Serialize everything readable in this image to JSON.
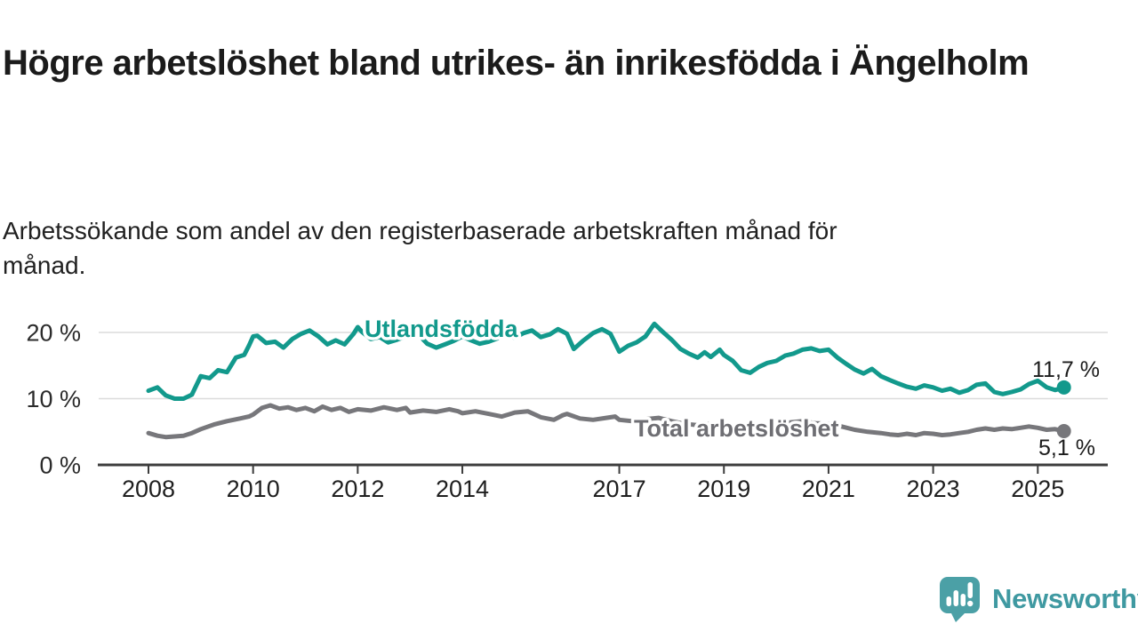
{
  "page": {
    "title": "Högre arbetslöshet bland utrikes- än inrikesfödda i Ängelholm",
    "subtitle": "Arbetssökande som andel av den registerbaserade arbetskraften månad för månad."
  },
  "branding": {
    "logo_text": "Newsworthy",
    "logo_icon": "newsworthy-speech-bubble-bar-chart-icon",
    "logo_text_color": "#3f99a1",
    "logo_icon_color": "#4ba0a6"
  },
  "chart_data": {
    "type": "line",
    "unit": "%",
    "grid": "horizontal",
    "x_axis": {
      "ticks": [
        2008,
        2010,
        2012,
        2014,
        2017,
        2019,
        2021,
        2023,
        2025
      ],
      "range": [
        2007.9,
        2026.3
      ]
    },
    "y_axis": {
      "ticks": [
        {
          "value": 0,
          "label": "0 %"
        },
        {
          "value": 10,
          "label": "10 %"
        },
        {
          "value": 20,
          "label": "20 %"
        }
      ],
      "range": [
        0,
        24.5
      ]
    },
    "series": [
      {
        "name": "Utlandsfödda",
        "color": "#12998c",
        "label_color": "#12998c",
        "end_value": 11.7,
        "end_label": "11,7 %",
        "points": [
          [
            2008.0,
            11.2
          ],
          [
            2008.17,
            11.7
          ],
          [
            2008.33,
            10.5
          ],
          [
            2008.5,
            10.0
          ],
          [
            2008.67,
            10.0
          ],
          [
            2008.83,
            10.6
          ],
          [
            2009.0,
            13.4
          ],
          [
            2009.17,
            13.1
          ],
          [
            2009.33,
            14.3
          ],
          [
            2009.5,
            14.0
          ],
          [
            2009.67,
            16.2
          ],
          [
            2009.83,
            16.6
          ],
          [
            2009.92,
            18.0
          ],
          [
            2010.0,
            19.4
          ],
          [
            2010.08,
            19.5
          ],
          [
            2010.25,
            18.4
          ],
          [
            2010.42,
            18.6
          ],
          [
            2010.58,
            17.7
          ],
          [
            2010.75,
            19.0
          ],
          [
            2010.92,
            19.8
          ],
          [
            2011.08,
            20.3
          ],
          [
            2011.25,
            19.4
          ],
          [
            2011.42,
            18.2
          ],
          [
            2011.58,
            18.8
          ],
          [
            2011.75,
            18.2
          ],
          [
            2011.92,
            19.8
          ],
          [
            2012.0,
            20.8
          ],
          [
            2012.08,
            20.1
          ],
          [
            2012.25,
            19.0
          ],
          [
            2012.42,
            19.3
          ],
          [
            2012.58,
            18.5
          ],
          [
            2012.75,
            18.9
          ],
          [
            2012.92,
            19.4
          ],
          [
            2013.0,
            20.3
          ],
          [
            2013.17,
            19.6
          ],
          [
            2013.33,
            18.3
          ],
          [
            2013.5,
            17.7
          ],
          [
            2013.67,
            18.2
          ],
          [
            2013.83,
            18.7
          ],
          [
            2014.0,
            19.4
          ],
          [
            2014.17,
            18.8
          ],
          [
            2014.33,
            18.3
          ],
          [
            2014.5,
            18.6
          ],
          [
            2014.67,
            19.1
          ],
          [
            2014.83,
            19.7
          ],
          [
            2015.0,
            19.2
          ],
          [
            2015.17,
            19.9
          ],
          [
            2015.33,
            20.3
          ],
          [
            2015.5,
            19.3
          ],
          [
            2015.67,
            19.7
          ],
          [
            2015.83,
            20.5
          ],
          [
            2016.0,
            19.8
          ],
          [
            2016.13,
            17.5
          ],
          [
            2016.3,
            18.7
          ],
          [
            2016.5,
            19.9
          ],
          [
            2016.67,
            20.5
          ],
          [
            2016.83,
            19.8
          ],
          [
            2017.0,
            17.1
          ],
          [
            2017.17,
            18.0
          ],
          [
            2017.33,
            18.5
          ],
          [
            2017.5,
            19.4
          ],
          [
            2017.67,
            21.3
          ],
          [
            2017.83,
            20.1
          ],
          [
            2018.0,
            18.9
          ],
          [
            2018.17,
            17.5
          ],
          [
            2018.33,
            16.8
          ],
          [
            2018.5,
            16.2
          ],
          [
            2018.63,
            17.0
          ],
          [
            2018.75,
            16.3
          ],
          [
            2018.92,
            17.4
          ],
          [
            2019.0,
            16.6
          ],
          [
            2019.17,
            15.7
          ],
          [
            2019.33,
            14.3
          ],
          [
            2019.5,
            13.9
          ],
          [
            2019.67,
            14.8
          ],
          [
            2019.83,
            15.4
          ],
          [
            2020.0,
            15.7
          ],
          [
            2020.17,
            16.5
          ],
          [
            2020.33,
            16.8
          ],
          [
            2020.5,
            17.4
          ],
          [
            2020.67,
            17.6
          ],
          [
            2020.83,
            17.2
          ],
          [
            2021.0,
            17.4
          ],
          [
            2021.17,
            16.2
          ],
          [
            2021.33,
            15.3
          ],
          [
            2021.5,
            14.4
          ],
          [
            2021.67,
            13.8
          ],
          [
            2021.83,
            14.5
          ],
          [
            2022.0,
            13.4
          ],
          [
            2022.17,
            12.8
          ],
          [
            2022.33,
            12.3
          ],
          [
            2022.5,
            11.8
          ],
          [
            2022.67,
            11.5
          ],
          [
            2022.83,
            12.0
          ],
          [
            2023.0,
            11.7
          ],
          [
            2023.17,
            11.2
          ],
          [
            2023.33,
            11.5
          ],
          [
            2023.5,
            10.9
          ],
          [
            2023.67,
            11.3
          ],
          [
            2023.83,
            12.1
          ],
          [
            2024.0,
            12.3
          ],
          [
            2024.17,
            11.0
          ],
          [
            2024.33,
            10.7
          ],
          [
            2024.5,
            11.0
          ],
          [
            2024.67,
            11.4
          ],
          [
            2024.83,
            12.2
          ],
          [
            2025.0,
            12.7
          ],
          [
            2025.17,
            11.7
          ],
          [
            2025.33,
            11.3
          ],
          [
            2025.5,
            11.7
          ]
        ]
      },
      {
        "name": "Total arbetslöshet",
        "color": "#77777b",
        "label_color": "#6e6e73",
        "end_value": 5.1,
        "end_label": "5,1 %",
        "points": [
          [
            2008.0,
            4.8
          ],
          [
            2008.17,
            4.4
          ],
          [
            2008.33,
            4.2
          ],
          [
            2008.5,
            4.3
          ],
          [
            2008.67,
            4.4
          ],
          [
            2008.83,
            4.8
          ],
          [
            2009.0,
            5.4
          ],
          [
            2009.25,
            6.1
          ],
          [
            2009.5,
            6.6
          ],
          [
            2009.75,
            7.0
          ],
          [
            2009.92,
            7.3
          ],
          [
            2010.0,
            7.6
          ],
          [
            2010.17,
            8.6
          ],
          [
            2010.33,
            9.0
          ],
          [
            2010.5,
            8.5
          ],
          [
            2010.67,
            8.7
          ],
          [
            2010.83,
            8.3
          ],
          [
            2011.0,
            8.6
          ],
          [
            2011.17,
            8.1
          ],
          [
            2011.33,
            8.8
          ],
          [
            2011.5,
            8.3
          ],
          [
            2011.67,
            8.6
          ],
          [
            2011.83,
            8.0
          ],
          [
            2012.0,
            8.4
          ],
          [
            2012.25,
            8.2
          ],
          [
            2012.5,
            8.7
          ],
          [
            2012.75,
            8.3
          ],
          [
            2012.92,
            8.6
          ],
          [
            2013.0,
            7.9
          ],
          [
            2013.25,
            8.2
          ],
          [
            2013.5,
            8.0
          ],
          [
            2013.75,
            8.4
          ],
          [
            2013.92,
            8.1
          ],
          [
            2014.0,
            7.8
          ],
          [
            2014.25,
            8.1
          ],
          [
            2014.5,
            7.7
          ],
          [
            2014.75,
            7.3
          ],
          [
            2014.92,
            7.7
          ],
          [
            2015.0,
            7.9
          ],
          [
            2015.25,
            8.1
          ],
          [
            2015.5,
            7.2
          ],
          [
            2015.75,
            6.8
          ],
          [
            2015.92,
            7.5
          ],
          [
            2016.0,
            7.7
          ],
          [
            2016.25,
            7.0
          ],
          [
            2016.5,
            6.8
          ],
          [
            2016.75,
            7.1
          ],
          [
            2016.92,
            7.3
          ],
          [
            2017.0,
            6.8
          ],
          [
            2017.25,
            6.6
          ],
          [
            2017.5,
            6.9
          ],
          [
            2017.75,
            7.1
          ],
          [
            2018.0,
            6.6
          ],
          [
            2018.25,
            6.2
          ],
          [
            2018.5,
            6.0
          ],
          [
            2018.75,
            6.2
          ],
          [
            2019.0,
            5.9
          ],
          [
            2019.25,
            5.6
          ],
          [
            2019.5,
            5.5
          ],
          [
            2019.75,
            5.7
          ],
          [
            2020.0,
            6.0
          ],
          [
            2020.25,
            6.4
          ],
          [
            2020.5,
            6.6
          ],
          [
            2020.75,
            6.3
          ],
          [
            2021.0,
            6.2
          ],
          [
            2021.25,
            5.8
          ],
          [
            2021.5,
            5.3
          ],
          [
            2021.75,
            5.0
          ],
          [
            2022.0,
            4.8
          ],
          [
            2022.17,
            4.6
          ],
          [
            2022.33,
            4.5
          ],
          [
            2022.5,
            4.7
          ],
          [
            2022.67,
            4.5
          ],
          [
            2022.83,
            4.8
          ],
          [
            2023.0,
            4.7
          ],
          [
            2023.17,
            4.5
          ],
          [
            2023.33,
            4.6
          ],
          [
            2023.5,
            4.8
          ],
          [
            2023.67,
            5.0
          ],
          [
            2023.83,
            5.3
          ],
          [
            2024.0,
            5.5
          ],
          [
            2024.17,
            5.3
          ],
          [
            2024.33,
            5.5
          ],
          [
            2024.5,
            5.4
          ],
          [
            2024.67,
            5.6
          ],
          [
            2024.83,
            5.8
          ],
          [
            2025.0,
            5.6
          ],
          [
            2025.17,
            5.3
          ],
          [
            2025.33,
            5.4
          ],
          [
            2025.5,
            5.1
          ]
        ]
      }
    ]
  }
}
